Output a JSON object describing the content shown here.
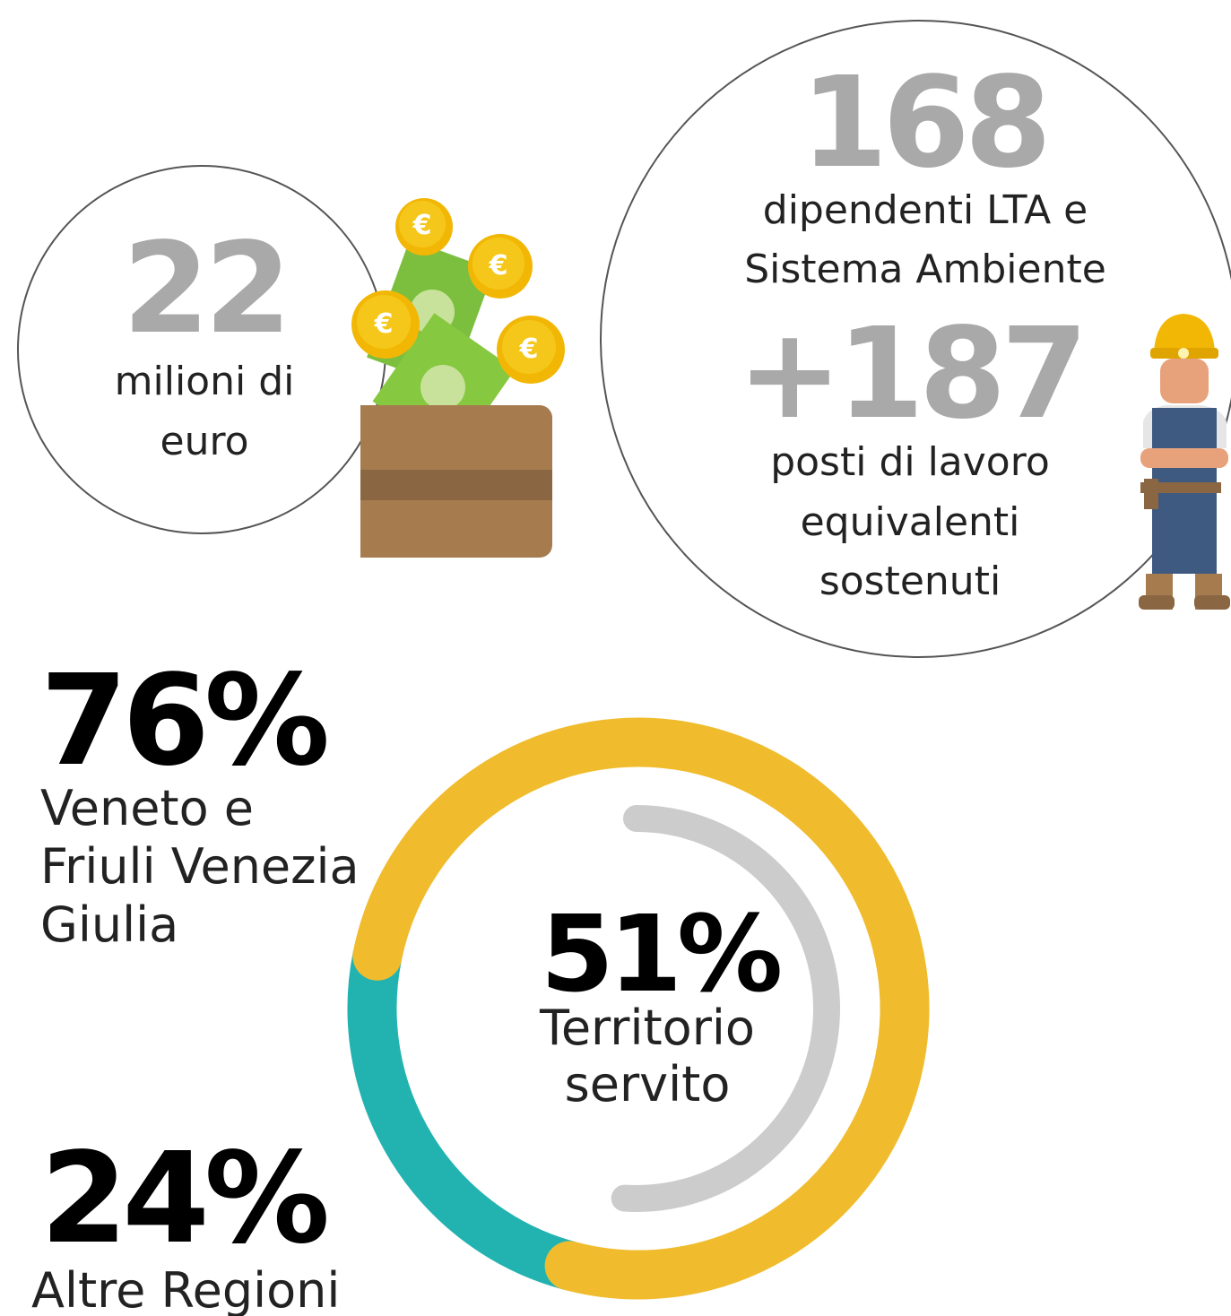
{
  "money": {
    "number": "22",
    "lines": [
      "milioni di",
      "euro"
    ]
  },
  "employees": {
    "number": "168",
    "lines": [
      "dipendenti LTA e",
      "Sistema Ambiente"
    ]
  },
  "jobs": {
    "number": "+187",
    "lines": [
      "posti di lavoro",
      "equivalenti",
      "sostenuti"
    ]
  },
  "coin_symbol": "€",
  "donut": {
    "segments": [
      {
        "value": 76,
        "value_label": "76%",
        "lines": [
          "Veneto e",
          "Friuli Venezia",
          "Giulia"
        ],
        "color": "#f0bc2d"
      },
      {
        "value": 24,
        "value_label": "24%",
        "lines": [
          "Altre Regioni"
        ],
        "color": "#22b3b1"
      }
    ],
    "inner": {
      "value": 51,
      "value_label": "51%",
      "lines": [
        "Territorio",
        "servito"
      ],
      "color": "#cccccc"
    }
  }
}
